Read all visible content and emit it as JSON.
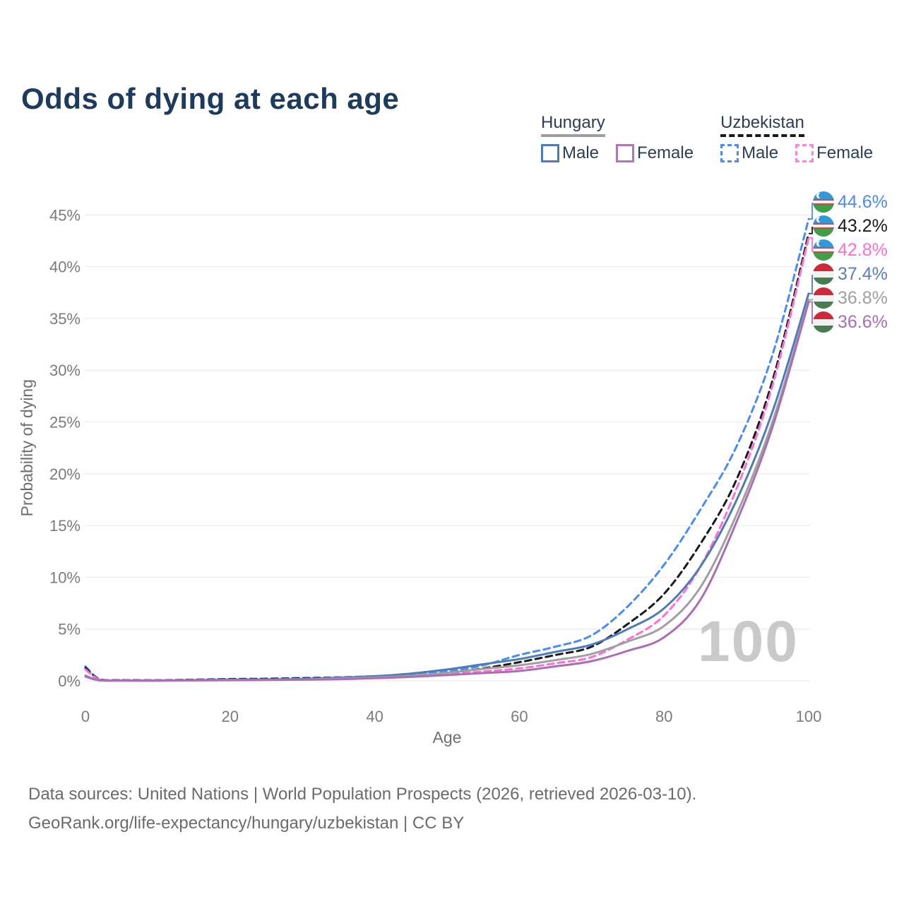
{
  "title": "Odds of dying at each age",
  "legend": {
    "groups": [
      {
        "id": "hungary",
        "country": "Hungary",
        "line_style": "solid",
        "underline_color": "#9e9e9e",
        "items": [
          {
            "id": "hungary-male",
            "label": "Male",
            "color": "#4d7cb8"
          },
          {
            "id": "hungary-female",
            "label": "Female",
            "color": "#b176b4"
          }
        ]
      },
      {
        "id": "uzbekistan",
        "country": "Uzbekistan",
        "line_style": "dashed",
        "underline_color": "#1a1a1a",
        "items": [
          {
            "id": "uzbekistan-male",
            "label": "Male",
            "color": "#4b8bf4"
          },
          {
            "id": "uzbekistan-female",
            "label": "Female",
            "color": "#ff80dd"
          }
        ]
      }
    ]
  },
  "chart_data": {
    "type": "line",
    "title": "Odds of dying at each age",
    "xlabel": "Age",
    "ylabel": "Probability of dying",
    "xlim": [
      0,
      100
    ],
    "ylim_percent": [
      0,
      45
    ],
    "grid": true,
    "legend_position": "top-right",
    "x_ticks": [
      0,
      20,
      40,
      60,
      80,
      100
    ],
    "y_tick_labels": [
      "0%",
      "5%",
      "10%",
      "15%",
      "20%",
      "25%",
      "30%",
      "35%",
      "40%",
      "45%"
    ],
    "x": [
      0,
      2,
      5,
      10,
      15,
      20,
      25,
      30,
      35,
      40,
      45,
      50,
      55,
      60,
      65,
      70,
      75,
      80,
      85,
      90,
      95,
      100
    ],
    "series": [
      {
        "id": "uzbekistan-male",
        "name": "Uzbekistan Male",
        "country": "Uzbekistan",
        "sex": "Male",
        "color": "#4b8bf4",
        "dashed": true,
        "end_label": "44.6%",
        "values": [
          1.4,
          0.15,
          0.08,
          0.06,
          0.12,
          0.18,
          0.22,
          0.28,
          0.35,
          0.45,
          0.6,
          0.9,
          1.5,
          2.5,
          3.3,
          4.4,
          7.2,
          11.2,
          16.5,
          22.6,
          31.5,
          44.6
        ]
      },
      {
        "id": "uzbekistan-total",
        "name": "Uzbekistan",
        "country": "Uzbekistan",
        "sex": "Both",
        "color": "#1a1a1a",
        "dashed": true,
        "end_label": "43.2%",
        "values": [
          1.25,
          0.12,
          0.07,
          0.05,
          0.1,
          0.15,
          0.18,
          0.23,
          0.3,
          0.4,
          0.5,
          0.75,
          1.2,
          1.8,
          2.5,
          3.3,
          5.5,
          8.4,
          13.2,
          19.4,
          29.0,
          43.2
        ]
      },
      {
        "id": "uzbekistan-female",
        "name": "Uzbekistan Female",
        "country": "Uzbekistan",
        "sex": "Female",
        "color": "#ff6ed0",
        "dashed": true,
        "end_label": "42.8%",
        "values": [
          1.1,
          0.1,
          0.06,
          0.04,
          0.08,
          0.1,
          0.13,
          0.17,
          0.25,
          0.3,
          0.4,
          0.6,
          0.9,
          1.2,
          1.7,
          2.3,
          4.0,
          6.3,
          11.0,
          18.5,
          28.5,
          42.8
        ]
      },
      {
        "id": "hungary-male",
        "name": "Hungary Male",
        "country": "Hungary",
        "sex": "Male",
        "color": "#4d7cb8",
        "dashed": false,
        "end_label": "37.4%",
        "values": [
          0.5,
          0.05,
          0.03,
          0.03,
          0.06,
          0.1,
          0.13,
          0.18,
          0.3,
          0.45,
          0.7,
          1.1,
          1.6,
          2.1,
          2.8,
          3.5,
          5.0,
          7.0,
          11.0,
          17.4,
          26.0,
          37.4
        ]
      },
      {
        "id": "hungary-total",
        "name": "Hungary",
        "country": "Hungary",
        "sex": "Both",
        "color": "#a0a0a0",
        "dashed": false,
        "end_label": "36.8%",
        "values": [
          0.45,
          0.05,
          0.03,
          0.02,
          0.05,
          0.08,
          0.1,
          0.14,
          0.22,
          0.33,
          0.5,
          0.78,
          1.15,
          1.5,
          2.0,
          2.6,
          3.8,
          5.3,
          9.0,
          16.0,
          25.0,
          36.8
        ]
      },
      {
        "id": "hungary-female",
        "name": "Hungary Female",
        "country": "Hungary",
        "sex": "Female",
        "color": "#ab6db3",
        "dashed": false,
        "end_label": "36.6%",
        "values": [
          0.4,
          0.04,
          0.02,
          0.02,
          0.04,
          0.06,
          0.08,
          0.11,
          0.16,
          0.25,
          0.38,
          0.55,
          0.75,
          0.95,
          1.4,
          1.9,
          2.9,
          4.2,
          7.8,
          15.3,
          24.5,
          36.6
        ]
      }
    ]
  },
  "end_labels": [
    {
      "id": "uzbekistan-male",
      "value": "44.6%",
      "color": "#4b8bf4",
      "flag": "uzbekistan"
    },
    {
      "id": "uzbekistan-total",
      "value": "43.2%",
      "color": "#1a1a1a",
      "flag": "uzbekistan"
    },
    {
      "id": "uzbekistan-female",
      "value": "42.8%",
      "color": "#ff6ed0",
      "flag": "uzbekistan"
    },
    {
      "id": "hungary-male",
      "value": "37.4%",
      "color": "#5b7fb9",
      "flag": "hungary"
    },
    {
      "id": "hungary-total",
      "value": "36.8%",
      "color": "#a0a0a0",
      "flag": "hungary"
    },
    {
      "id": "hungary-female",
      "value": "36.6%",
      "color": "#ab6db3",
      "flag": "hungary"
    }
  ],
  "watermark": "100",
  "footer": {
    "line1": "Data sources: United Nations | World Population Prospects (2026, retrieved 2026-03-10).",
    "line2": "GeoRank.org/life-expectancy/hungary/uzbekistan | CC BY"
  }
}
